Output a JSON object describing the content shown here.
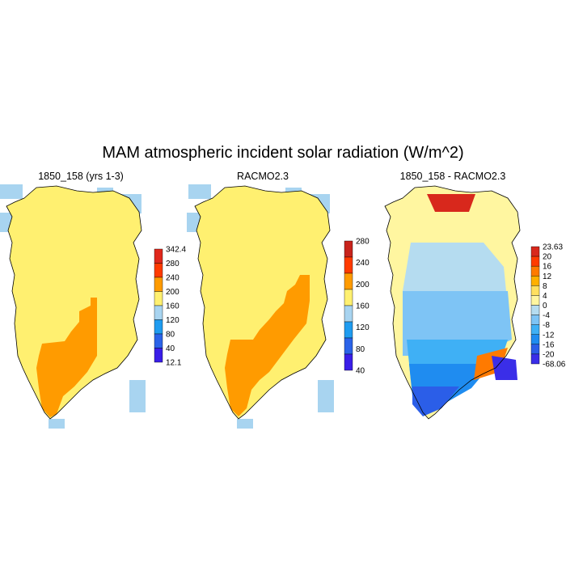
{
  "figure": {
    "title": "MAM atmospheric incident solar radiation (W/m^2)"
  },
  "panels": [
    {
      "title": "1850_158 (yrs 1-3)",
      "kind": "model",
      "colorbar": {
        "levels": [
          "342.4",
          "280",
          "240",
          "200",
          "160",
          "120",
          "80",
          "40",
          "12.1"
        ],
        "colors": [
          "#e0281c",
          "#ff3b00",
          "#ff9b00",
          "#fff070",
          "#a8d4f0",
          "#1f9cf0",
          "#2b63e8",
          "#3a1ee8"
        ]
      }
    },
    {
      "title": "RACMO2.3",
      "kind": "model",
      "colorbar": {
        "levels": [
          "280",
          "240",
          "200",
          "160",
          "120",
          "80",
          "40"
        ],
        "colors": [
          "#c8241c",
          "#ff3b00",
          "#ff9b00",
          "#fff070",
          "#a8d4f0",
          "#1f9cf0",
          "#2b63e8",
          "#3a1ee8"
        ]
      }
    },
    {
      "title": "1850_158 - RACMO2.3",
      "kind": "difference",
      "colorbar": {
        "levels": [
          "23.63",
          "20",
          "16",
          "12",
          "8",
          "4",
          "0",
          "-4",
          "-8",
          "-12",
          "-16",
          "-20",
          "-68.06"
        ],
        "colors": [
          "#d8281c",
          "#ff3b00",
          "#ff7a00",
          "#ffb000",
          "#ffe060",
          "#fff6a0",
          "#b5dcf0",
          "#7ec4f5",
          "#3fb0f5",
          "#1f8cf0",
          "#2b5ee8",
          "#3a2ee8"
        ]
      }
    }
  ],
  "colors": {
    "ocean_blue": "#a8d4f0",
    "ice_yellow": "#fff070",
    "south_orange": "#ff9b00",
    "coast_line": "#000000"
  }
}
